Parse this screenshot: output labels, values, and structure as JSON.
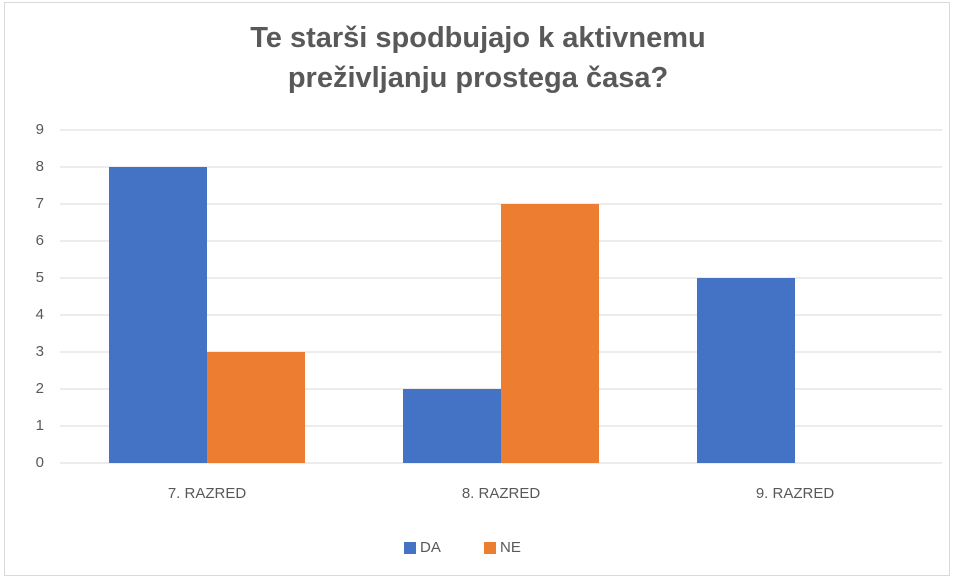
{
  "chart_data": {
    "type": "bar",
    "title": "Te starši spodbujajo k aktivnemu preživljanju prostega časa?",
    "categories": [
      "7. RAZRED",
      "8. RAZRED",
      "9. RAZRED"
    ],
    "series": [
      {
        "name": "DA",
        "color": "#4472c4",
        "values": [
          8,
          2,
          5
        ]
      },
      {
        "name": "NE",
        "color": "#ed7d31",
        "values": [
          3,
          7,
          0
        ]
      }
    ],
    "ylim": [
      0,
      9
    ],
    "yticks": [
      0,
      1,
      2,
      3,
      4,
      5,
      6,
      7,
      8,
      9
    ],
    "grid": true,
    "legend": "bottom"
  }
}
